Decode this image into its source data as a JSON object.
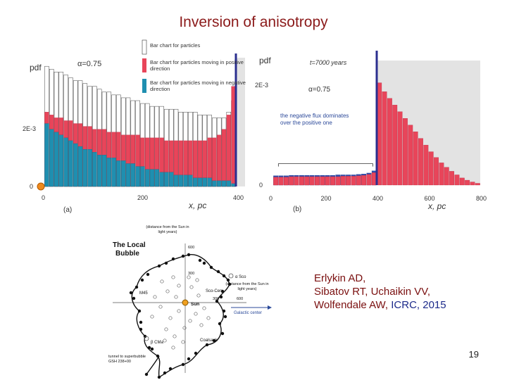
{
  "slide": {
    "title": "Inversion of anisotropy",
    "citation": {
      "line1": "Erlykin AD,",
      "line2": "Sibatov RT, Uchaikin VV,",
      "line3_authors": "Wolfendale AW, ",
      "line3_conf": "ICRC, 2015"
    },
    "page_number": "19"
  },
  "chart_data": [
    {
      "type": "bar",
      "panel_label": "(a)",
      "ylabel": "pdf",
      "xlabel": "x, pc",
      "param_label": "α=0.75",
      "x_ticks": [
        "0",
        "200",
        "400"
      ],
      "y_ticks": [
        "0",
        "2E-3"
      ],
      "xlim": [
        0,
        400
      ],
      "ylim": [
        0,
        0.0045
      ],
      "legend": [
        "Bar chart for particles",
        "Bar chart for particles moving in positive direction",
        "Bar chart for particles moving in negative direction"
      ],
      "colors": {
        "total": "#ffffff",
        "positive": "#e8455a",
        "negative": "#1f8fb0",
        "boundary": "#2b2f8f"
      },
      "x": [
        5,
        15,
        25,
        35,
        45,
        55,
        65,
        75,
        85,
        95,
        105,
        115,
        125,
        135,
        145,
        155,
        165,
        175,
        185,
        195,
        205,
        215,
        225,
        235,
        245,
        255,
        265,
        275,
        285,
        295,
        305,
        315,
        325,
        335,
        345,
        355,
        365,
        375,
        385,
        395
      ],
      "total": [
        0.0042,
        0.0041,
        0.004,
        0.004,
        0.0039,
        0.0038,
        0.0037,
        0.0037,
        0.0036,
        0.0035,
        0.0035,
        0.0034,
        0.0033,
        0.0033,
        0.0032,
        0.0032,
        0.0031,
        0.0031,
        0.003,
        0.003,
        0.0029,
        0.0029,
        0.0028,
        0.0028,
        0.0028,
        0.0027,
        0.0027,
        0.0027,
        0.0026,
        0.0026,
        0.0026,
        0.0026,
        0.0025,
        0.0025,
        0.0025,
        0.0024,
        0.0024,
        0.0024,
        0.0026,
        0.003
      ],
      "positive": [
        0.0026,
        0.0025,
        0.0024,
        0.0024,
        0.0023,
        0.0023,
        0.0022,
        0.0022,
        0.0021,
        0.0021,
        0.002,
        0.002,
        0.002,
        0.0019,
        0.0019,
        0.0019,
        0.0018,
        0.0018,
        0.0018,
        0.0018,
        0.0017,
        0.0017,
        0.0017,
        0.0017,
        0.0017,
        0.0016,
        0.0016,
        0.0016,
        0.0016,
        0.0016,
        0.0016,
        0.0016,
        0.0016,
        0.0016,
        0.0017,
        0.0017,
        0.0018,
        0.002,
        0.0025,
        0.0035
      ],
      "negative": [
        0.0022,
        0.002,
        0.0019,
        0.0018,
        0.0017,
        0.0016,
        0.0015,
        0.0014,
        0.0013,
        0.0013,
        0.0012,
        0.0011,
        0.0011,
        0.001,
        0.001,
        0.0009,
        0.0009,
        0.0008,
        0.0008,
        0.0007,
        0.0007,
        0.0006,
        0.0006,
        0.0006,
        0.0005,
        0.0005,
        0.0005,
        0.0004,
        0.0004,
        0.0004,
        0.0004,
        0.0003,
        0.0003,
        0.0003,
        0.0003,
        0.0002,
        0.0002,
        0.0002,
        0.0002,
        0.0001
      ]
    },
    {
      "type": "bar",
      "panel_label": "(b)",
      "ylabel": "pdf",
      "xlabel": "x, pc",
      "param_label": "α=0.75",
      "time_label": "t=7000 years",
      "annotation": "the negative flux dominates over the positive one",
      "x_ticks": [
        "0",
        "200",
        "400",
        "600",
        "800"
      ],
      "y_ticks": [
        "0",
        "2E-3"
      ],
      "xlim": [
        0,
        800
      ],
      "ylim": [
        0,
        0.0028
      ],
      "colors": {
        "positive": "#e8455a",
        "negative": "#2e4fb0",
        "boundary": "#2b2f8f"
      },
      "x": [
        10,
        30,
        50,
        70,
        90,
        110,
        130,
        150,
        170,
        190,
        210,
        230,
        250,
        270,
        290,
        310,
        330,
        350,
        370,
        390,
        410,
        430,
        450,
        470,
        490,
        510,
        530,
        550,
        570,
        590,
        610,
        630,
        650,
        670,
        690,
        710,
        730,
        750,
        770,
        790
      ],
      "positive": [
        0.00018,
        0.00018,
        0.00018,
        0.00019,
        0.00019,
        0.00019,
        0.00019,
        0.00019,
        0.00019,
        0.00019,
        0.00019,
        0.00019,
        0.00019,
        0.0002,
        0.0002,
        0.0002,
        0.00021,
        0.00022,
        0.00024,
        0.00028,
        0.0023,
        0.0021,
        0.00195,
        0.0018,
        0.00165,
        0.0015,
        0.00135,
        0.0012,
        0.00105,
        0.0009,
        0.00075,
        0.00062,
        0.0005,
        0.0004,
        0.00031,
        0.00023,
        0.00016,
        0.00011,
        7e-05,
        4e-05
      ],
      "negative": [
        0.00021,
        0.00021,
        0.00021,
        0.00022,
        0.00022,
        0.00022,
        0.00022,
        0.00022,
        0.00022,
        0.00022,
        0.00022,
        0.00022,
        0.00023,
        0.00023,
        0.00023,
        0.00023,
        0.00024,
        0.00025,
        0.00027,
        0.00032,
        0.0,
        0.0,
        0.0,
        0.0,
        0.0,
        0.0,
        0.0,
        0.0,
        0.0,
        0.0,
        0.0,
        0.0,
        0.0,
        0.0,
        0.0,
        0.0,
        0.0,
        0.0,
        0.0,
        0.0
      ]
    }
  ],
  "bubble_map": {
    "title_line1": "The Local",
    "title_line2": "Bubble",
    "dist_note": "(distance from the Sun in light years)",
    "dist_note_right": "(distance from the Sun in light years)",
    "labels": {
      "sun": "Sun",
      "sco_cen": "Sco-Cen",
      "alpha_sco": "α Sco",
      "galactic_center": "Galactic center",
      "m45": "M45",
      "coalsack": "Coalsack",
      "beta_cma": "β CMa",
      "tunnel": "tunnel to superbubble GSH 238+00",
      "r300": "300",
      "r600": "600",
      "r300b": "300",
      "r600b": "600"
    }
  }
}
